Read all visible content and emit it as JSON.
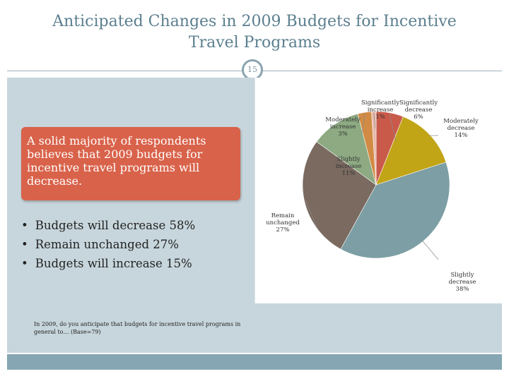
{
  "slide": {
    "title_line1": "Anticipated Changes in 2009 Budgets for Incentive",
    "title_line2": "Travel Programs",
    "page_number": "15"
  },
  "callout_text": "A solid majority of respondents believes that 2009 budgets for incentive travel programs will decrease.",
  "bullets": [
    "Budgets will decrease 58%",
    "Remain unchanged 27%",
    "Budgets will increase 15%"
  ],
  "question_note": "In 2009, do you anticipate that budgets for incentive travel programs in general to… (Base=79)",
  "chart_data": {
    "type": "pie",
    "title": "",
    "start_angle_deg": 0,
    "slices": [
      {
        "label_lines": [
          "Significantly",
          "decrease"
        ],
        "value_label": "6%",
        "value": 6,
        "color": "#c95a4a"
      },
      {
        "label_lines": [
          "Moderately",
          "decrease"
        ],
        "value_label": "14%",
        "value": 14,
        "color": "#c2a417"
      },
      {
        "label_lines": [
          "Slightly",
          "decrease"
        ],
        "value_label": "38%",
        "value": 38,
        "color": "#7c9ea4"
      },
      {
        "label_lines": [
          "Remain",
          "unchanged"
        ],
        "value_label": "27%",
        "value": 27,
        "color": "#7a6a60"
      },
      {
        "label_lines": [
          "Slightly",
          "increase"
        ],
        "value_label": "11%",
        "value": 11,
        "color": "#8daa82"
      },
      {
        "label_lines": [
          "Moderately",
          "increase"
        ],
        "value_label": "3%",
        "value": 3,
        "color": "#d18b44"
      },
      {
        "label_lines": [
          "Significantly",
          "increase"
        ],
        "value_label": "1%",
        "value": 1,
        "color": "#e7b7a8"
      }
    ]
  }
}
